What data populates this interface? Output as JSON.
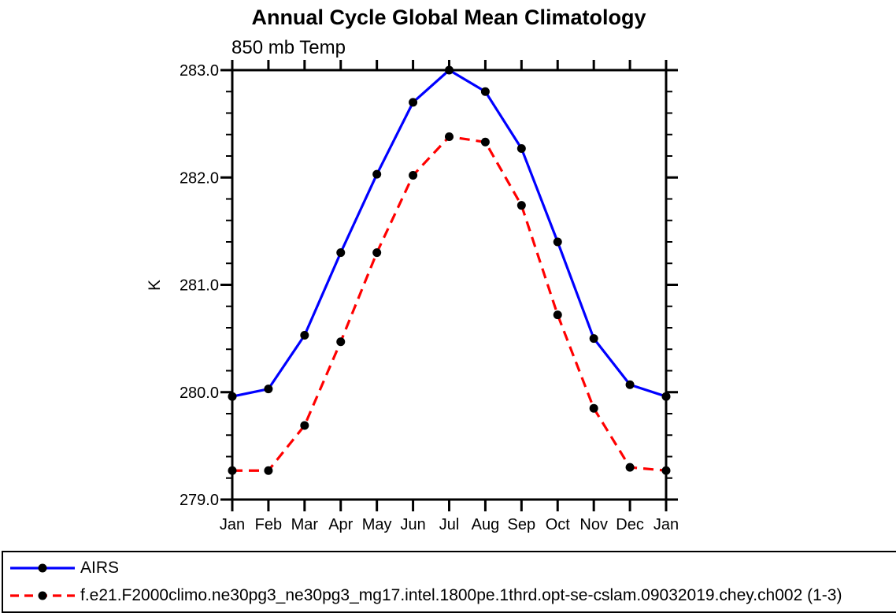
{
  "figure": {
    "title": "Annual Cycle Global Mean Climatology",
    "subtitle": "850 mb Temp"
  },
  "chart_data": {
    "type": "line",
    "x": [
      "Jan",
      "Feb",
      "Mar",
      "Apr",
      "May",
      "Jun",
      "Jul",
      "Aug",
      "Sep",
      "Oct",
      "Nov",
      "Dec",
      "Jan"
    ],
    "xlabel": "",
    "ylabel": "K",
    "ylim": [
      279.0,
      283.0
    ],
    "ytick_step": 1.0,
    "ytick_minor_step": 0.2,
    "ytick_labels": [
      "279.0",
      "280.0",
      "281.0",
      "282.0",
      "283.0"
    ],
    "grid": false,
    "legend_position": "bottom-outside-boxed",
    "axis_color": "#000000",
    "series": [
      {
        "name": "AIRS",
        "color": "#0000ff",
        "style": "solid",
        "marker": "circle",
        "marker_color": "#000000",
        "values": [
          279.96,
          280.03,
          280.53,
          281.3,
          282.03,
          282.7,
          283.0,
          282.8,
          282.27,
          281.4,
          280.5,
          280.07,
          279.96
        ]
      },
      {
        "name": "f.e21.F2000climo.ne30pg3_ne30pg3_mg17.intel.1800pe.1thrd.opt-se-cslam.09032019.chey.ch002 (1-3)",
        "color": "#ff0000",
        "style": "dashed",
        "marker": "circle",
        "marker_color": "#000000",
        "values": [
          279.27,
          279.27,
          279.69,
          280.47,
          281.3,
          282.02,
          282.38,
          282.33,
          281.74,
          280.72,
          279.85,
          279.3,
          279.27
        ]
      }
    ]
  }
}
